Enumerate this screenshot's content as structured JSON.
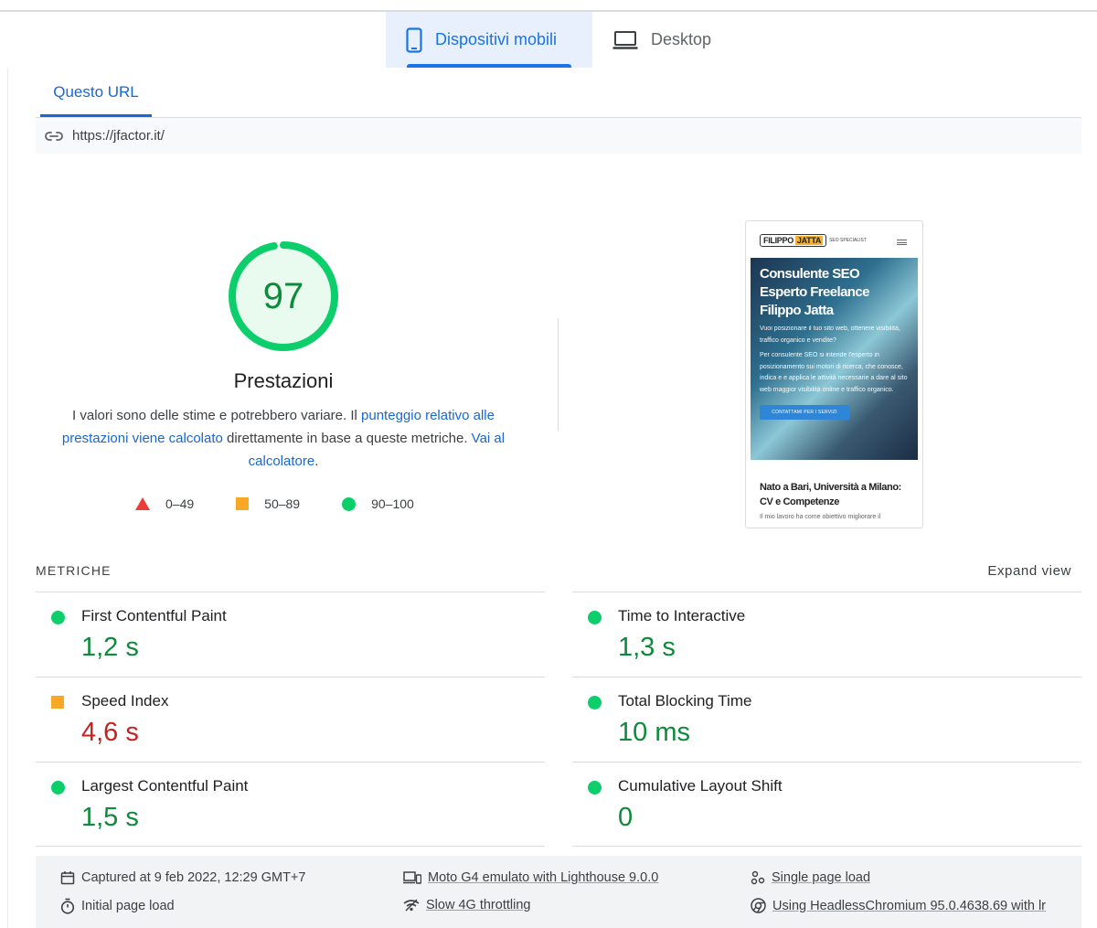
{
  "device_tabs": [
    {
      "label": "Dispositivi mobili",
      "icon": "smartphone-icon",
      "active": true
    },
    {
      "label": "Desktop",
      "icon": "laptop-icon",
      "active": false
    }
  ],
  "url_tab": {
    "label": "Questo URL"
  },
  "url": {
    "icon": "link-icon",
    "value": "https://jfactor.it/"
  },
  "score": {
    "value": "97",
    "fraction": 0.97,
    "color": "#0cce6b",
    "title": "Prestazioni"
  },
  "description": {
    "part1": "I valori sono delle stime e potrebbero variare. Il ",
    "link1": "punteggio relativo alle prestazioni viene calcolato",
    "part2": " direttamente in base a queste metriche. ",
    "link2": "Vai al calcolatore",
    "part3": "."
  },
  "legend": [
    {
      "shape": "triangle",
      "color": "#eb3c36",
      "label": "0–49"
    },
    {
      "shape": "square",
      "color": "#f9a825",
      "label": "50–89"
    },
    {
      "shape": "circle",
      "color": "#0cce6b",
      "label": "90–100"
    }
  ],
  "screenshot": {
    "logo_name": "FILIPPO",
    "logo_surname": "JATTA",
    "logo_sub": "SEO SPECIALIST",
    "hero_title": "Consulente SEO Esperto Freelance Filippo Jatta",
    "hero_text1": "Vuoi posizionare il tuo sito web, ottenere visibilità, traffico organico e vendite?",
    "hero_text2": "Per consulente SEO si intende l'esperto in posizionamento sui motori di ricerca, che conosce, indica e e applica le attività necessarie a dare al sito web maggior visibilità online e traffico organico.",
    "hero_button": "CONTATTAMI PER I SERVIZI",
    "bottom_title": "Nato a Bari, Università a Milano: CV e Competenze",
    "bottom_sub": "Il mio lavoro ha come obiettivo migliorare il"
  },
  "metrics": {
    "header": "METRICHE",
    "expand_label": "Expand view",
    "items": [
      {
        "name": "First Contentful Paint",
        "value": "1,2 s",
        "status": "good"
      },
      {
        "name": "Time to Interactive",
        "value": "1,3 s",
        "status": "good"
      },
      {
        "name": "Speed Index",
        "value": "4,6 s",
        "status": "poor"
      },
      {
        "name": "Total Blocking Time",
        "value": "10 ms",
        "status": "good"
      },
      {
        "name": "Largest Contentful Paint",
        "value": "1,5 s",
        "status": "good"
      },
      {
        "name": "Cumulative Layout Shift",
        "value": "0",
        "status": "good"
      }
    ]
  },
  "footer": {
    "captured": "Captured at 9 feb 2022, 12:29 GMT+7",
    "device": "Moto G4 emulato with Lighthouse 9.0.0",
    "single_page": "Single page load",
    "initial_load": "Initial page load",
    "throttling": "Slow 4G throttling",
    "browser": "Using HeadlessChromium 95.0.4638.69 with lr"
  }
}
